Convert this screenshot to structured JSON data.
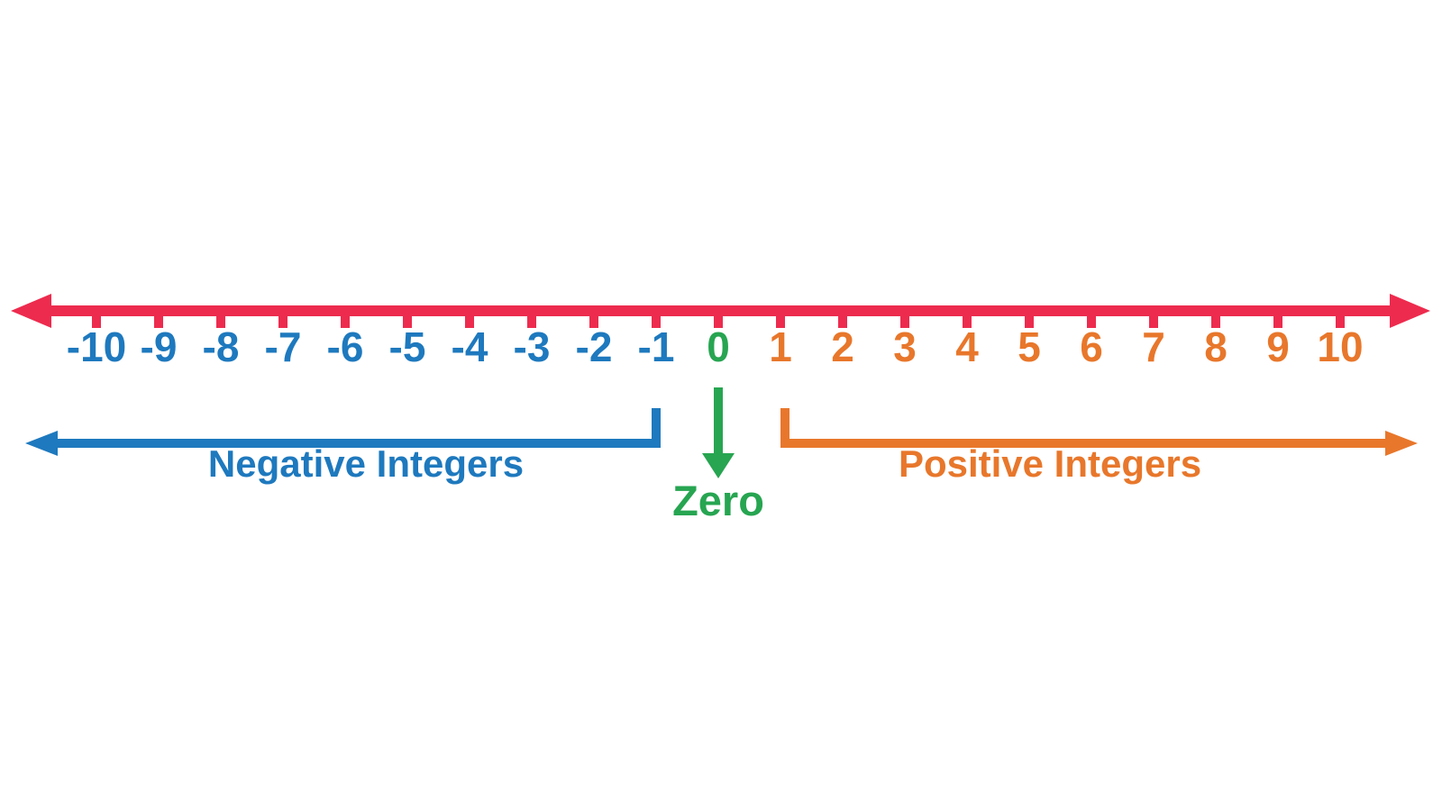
{
  "colors": {
    "line": "#ED2B4E",
    "negative": "#1E79BE",
    "zero": "#27A551",
    "positive": "#E8772B"
  },
  "numberline": {
    "min": -10,
    "max": 10,
    "values": [
      -10,
      -9,
      -8,
      -7,
      -6,
      -5,
      -4,
      -3,
      -2,
      -1,
      0,
      1,
      2,
      3,
      4,
      5,
      6,
      7,
      8,
      9,
      10
    ]
  },
  "labels": {
    "negative": "Negative Integers",
    "zero": "Zero",
    "positive": "Positive Integers"
  }
}
